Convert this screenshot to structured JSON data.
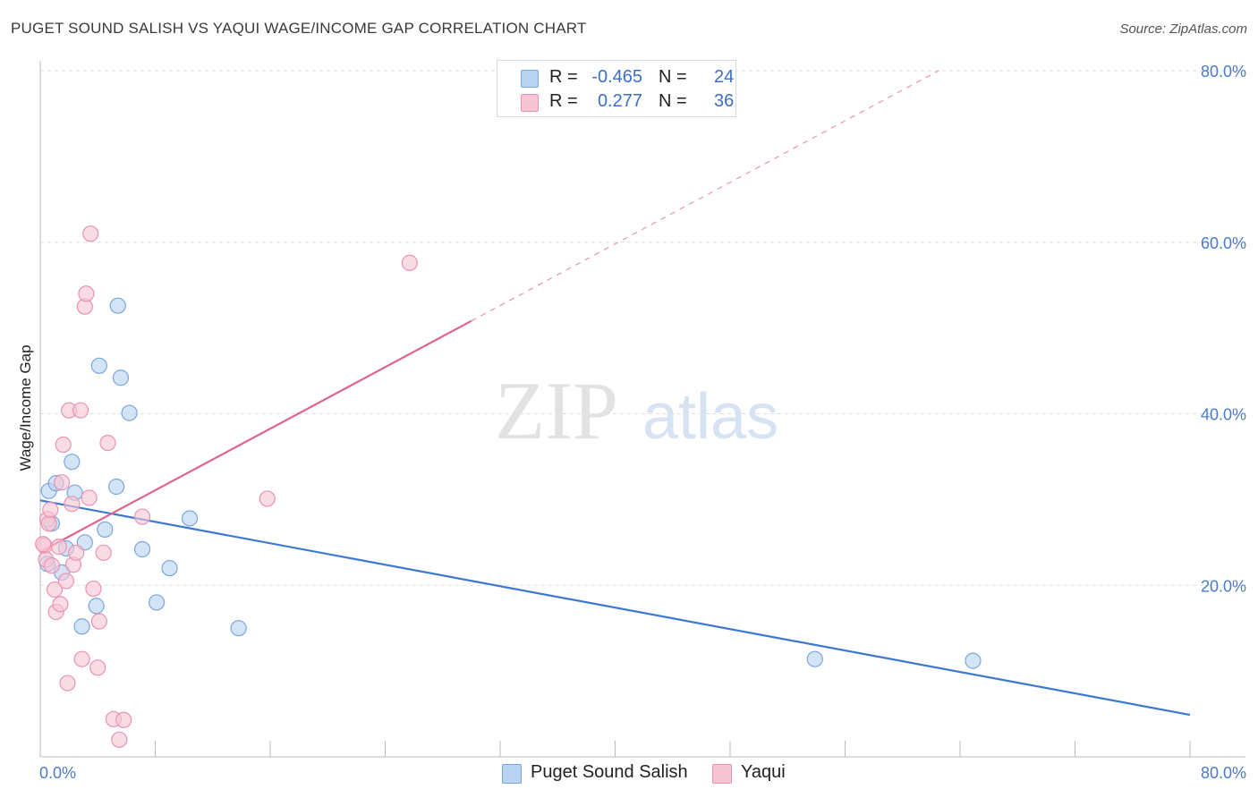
{
  "title": "PUGET SOUND SALISH VS YAQUI WAGE/INCOME GAP CORRELATION CHART",
  "source": "Source: ZipAtlas.com",
  "watermark": {
    "zip": "ZIP",
    "atlas": "atlas"
  },
  "legend": {
    "series1": {
      "r_label": "R =",
      "r_value": "-0.465",
      "n_label": "N =",
      "n_value": "24"
    },
    "series2": {
      "r_label": "R =",
      "r_value": "0.277",
      "n_label": "N =",
      "n_value": "36"
    }
  },
  "bottom_legend": {
    "series1": "Puget Sound Salish",
    "series2": "Yaqui"
  },
  "colors": {
    "blue_fill": "#b8d2f2",
    "blue_stroke": "#7aa6e0",
    "blue_line": "#3b78d4",
    "pink_fill": "#f6c4d3",
    "pink_stroke": "#eb93ae",
    "pink_line": "#e0648c",
    "tick_text": "#4a7cc9",
    "grid": "#dddddd"
  },
  "chart_data": {
    "type": "scatter",
    "title": "PUGET SOUND SALISH VS YAQUI WAGE/INCOME GAP CORRELATION CHART",
    "xlabel": "",
    "ylabel": "Wage/Income Gap",
    "xlim": [
      0,
      80
    ],
    "ylim": [
      0,
      80
    ],
    "x_tick_labels": [
      "0.0%",
      "80.0%"
    ],
    "y_ticks": [
      20,
      40,
      60,
      80
    ],
    "y_tick_labels": [
      "20.0%",
      "40.0%",
      "60.0%",
      "80.0%"
    ],
    "grid": true,
    "legend_position": "top-center",
    "series": [
      {
        "name": "Puget Sound Salish",
        "color": "#b8d2f2",
        "points": [
          [
            0.5,
            22.5
          ],
          [
            0.6,
            31.0
          ],
          [
            0.8,
            27.2
          ],
          [
            1.1,
            31.9
          ],
          [
            1.5,
            21.5
          ],
          [
            1.8,
            24.3
          ],
          [
            2.2,
            34.4
          ],
          [
            2.4,
            30.8
          ],
          [
            2.9,
            15.2
          ],
          [
            3.1,
            25.0
          ],
          [
            3.9,
            17.6
          ],
          [
            4.1,
            45.6
          ],
          [
            4.5,
            26.5
          ],
          [
            5.3,
            31.5
          ],
          [
            5.4,
            52.6
          ],
          [
            5.6,
            44.2
          ],
          [
            6.2,
            40.1
          ],
          [
            7.1,
            24.2
          ],
          [
            8.1,
            18.0
          ],
          [
            9.0,
            22.0
          ],
          [
            10.4,
            27.8
          ],
          [
            13.8,
            15.0
          ],
          [
            53.9,
            11.4
          ],
          [
            64.9,
            11.2
          ]
        ],
        "trend": {
          "x": [
            0,
            80
          ],
          "y": [
            29.9,
            4.9
          ],
          "style": "solid"
        }
      },
      {
        "name": "Yaqui",
        "color": "#f6c4d3",
        "points": [
          [
            0.3,
            24.6
          ],
          [
            0.4,
            23.0
          ],
          [
            0.5,
            27.7
          ],
          [
            0.6,
            27.2
          ],
          [
            0.7,
            28.8
          ],
          [
            0.8,
            22.3
          ],
          [
            1.0,
            19.5
          ],
          [
            1.1,
            16.9
          ],
          [
            1.3,
            24.5
          ],
          [
            1.4,
            17.8
          ],
          [
            1.5,
            32.0
          ],
          [
            1.6,
            36.4
          ],
          [
            1.8,
            20.5
          ],
          [
            1.9,
            8.6
          ],
          [
            2.0,
            40.4
          ],
          [
            2.2,
            29.5
          ],
          [
            2.3,
            22.4
          ],
          [
            2.5,
            23.8
          ],
          [
            2.8,
            40.4
          ],
          [
            2.9,
            11.4
          ],
          [
            3.1,
            52.5
          ],
          [
            3.2,
            54.0
          ],
          [
            3.4,
            30.2
          ],
          [
            3.5,
            61.0
          ],
          [
            3.7,
            19.6
          ],
          [
            4.0,
            10.4
          ],
          [
            4.1,
            15.8
          ],
          [
            4.4,
            23.8
          ],
          [
            4.7,
            36.6
          ],
          [
            5.1,
            4.4
          ],
          [
            5.5,
            2.0
          ],
          [
            5.8,
            4.3
          ],
          [
            7.1,
            28.0
          ],
          [
            15.8,
            30.1
          ],
          [
            25.7,
            57.6
          ],
          [
            0.2,
            24.8
          ]
        ],
        "trend": {
          "x": [
            0,
            80
          ],
          "y": [
            23.9,
            95.7
          ],
          "solid_to_x": 30.0,
          "style": "solid-then-dashed"
        }
      }
    ]
  }
}
